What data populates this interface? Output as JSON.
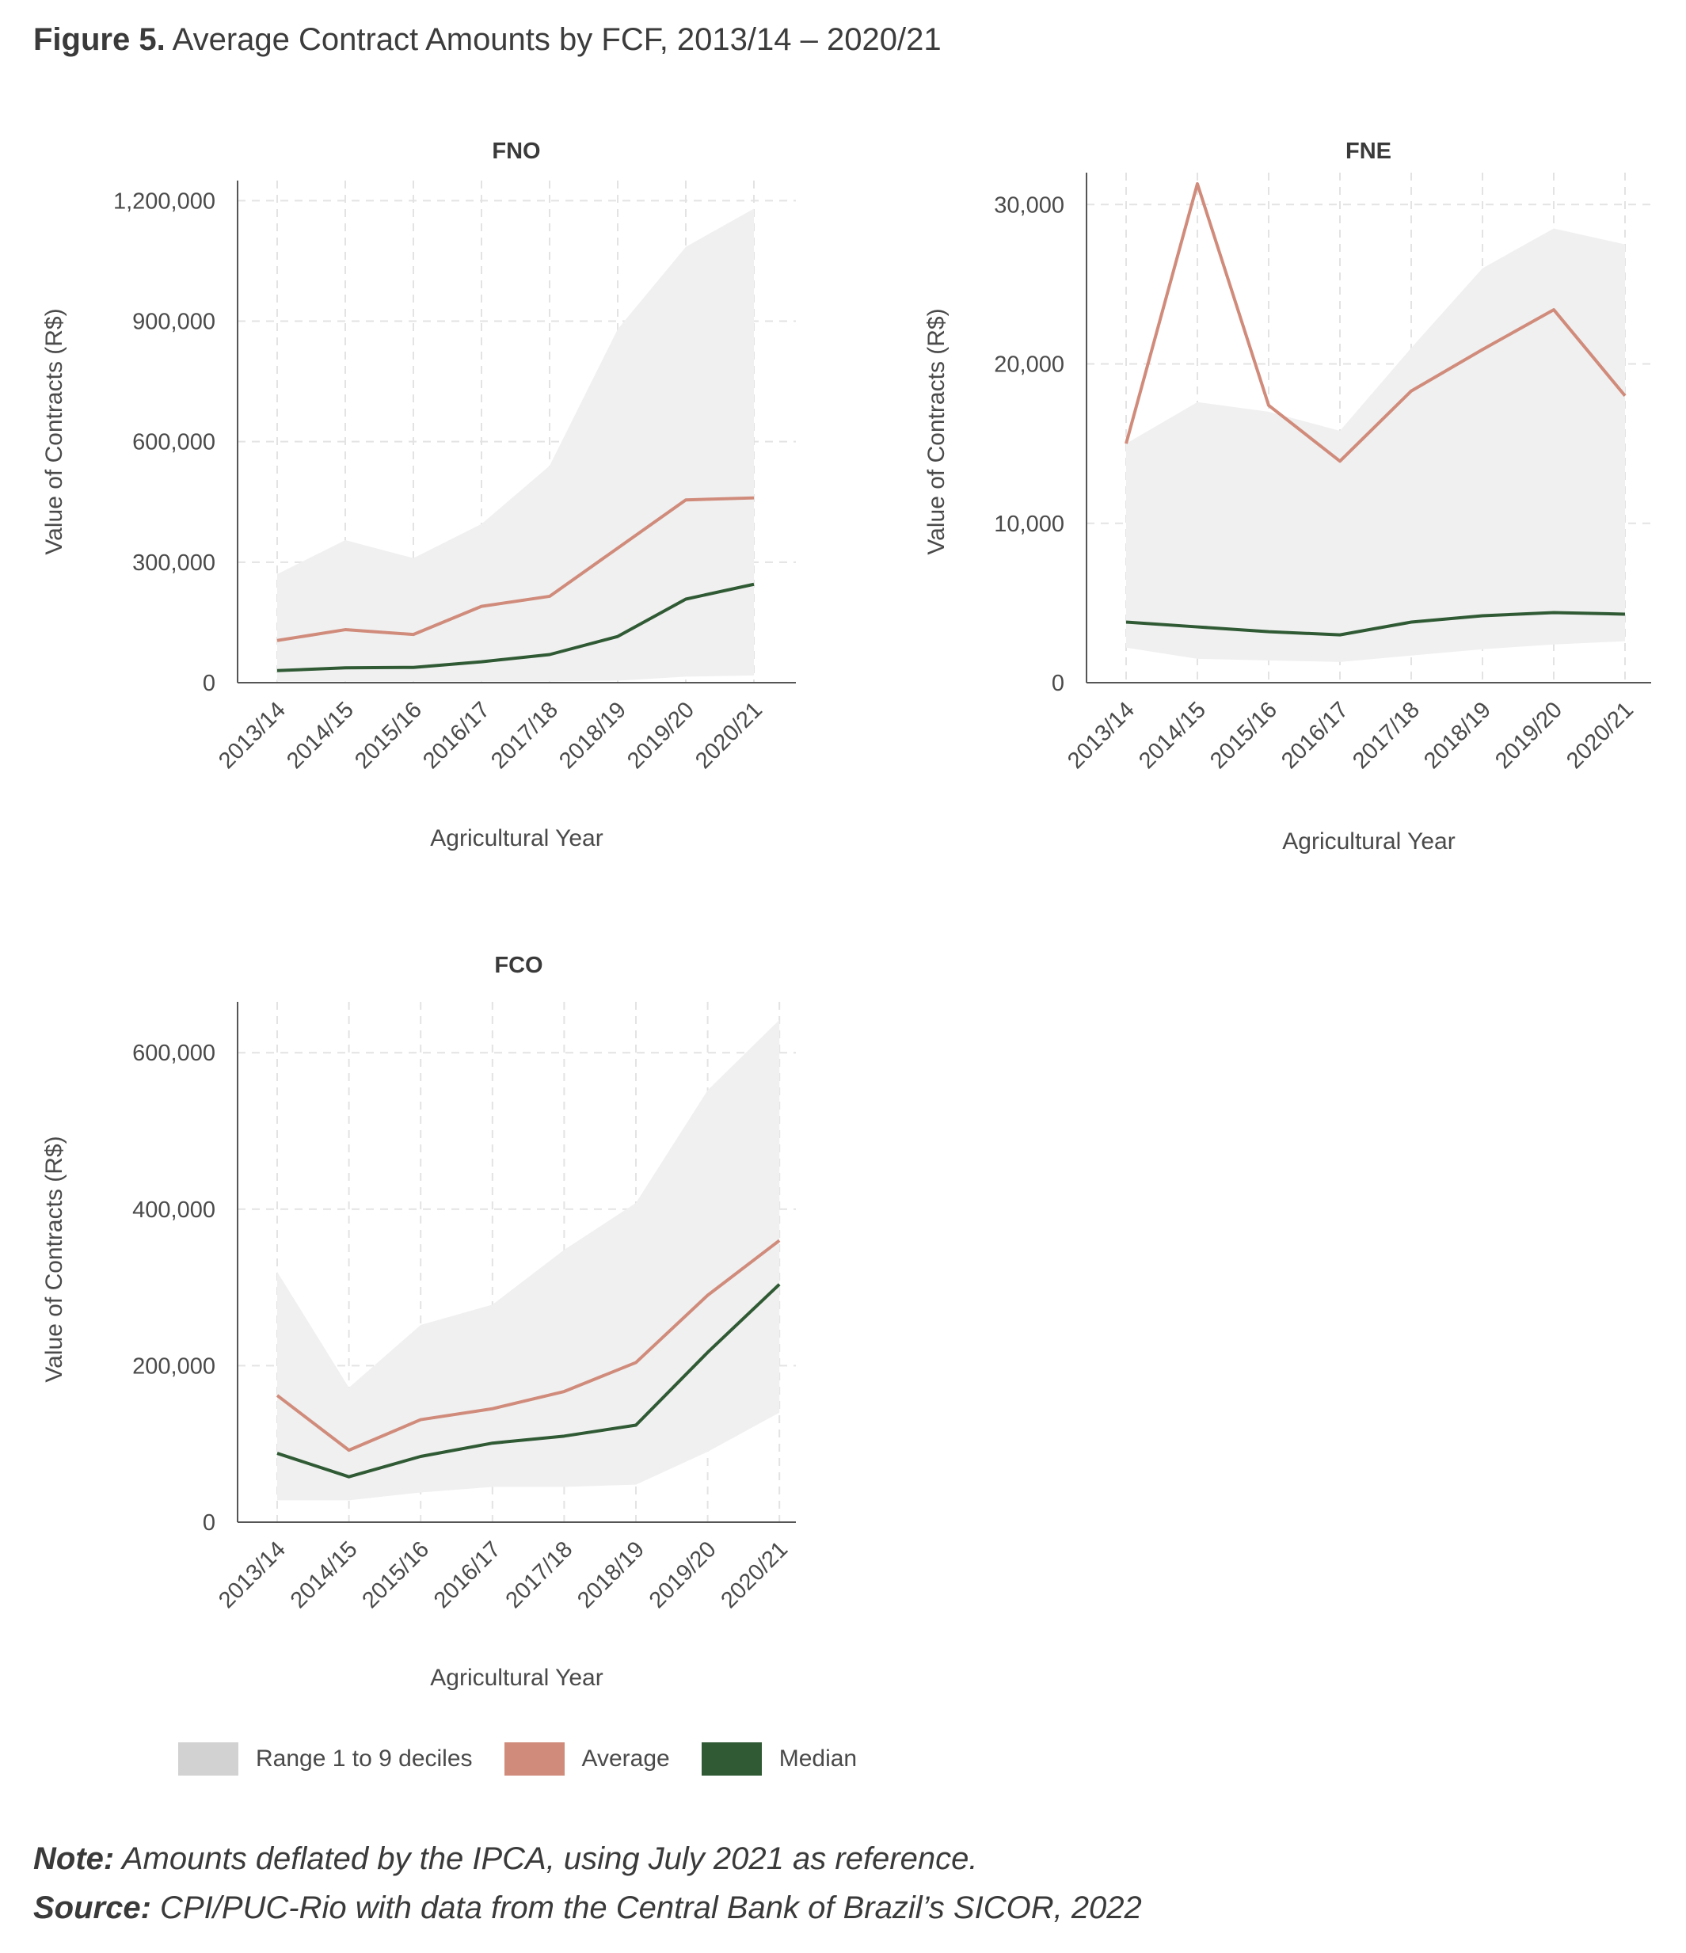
{
  "figure": {
    "label": "Figure 5.",
    "title": "Average Contract Amounts by FCF, 2013/14 – 2020/21"
  },
  "legend": {
    "range": "Range 1 to 9 deciles",
    "average": "Average",
    "median": "Median"
  },
  "colors": {
    "range": "#f0f0f0",
    "range_swatch": "#d2d2d2",
    "average": "#d08b7b",
    "median": "#2f5a34",
    "grid": "#e3e3e3",
    "axis": "#555555"
  },
  "note": {
    "label": "Note:",
    "text": " Amounts deflated by the IPCA, using July 2021 as reference."
  },
  "source": {
    "label": "Source:",
    "text": " CPI/PUC-Rio with data from the Central Bank of Brazil’s SICOR, 2022"
  },
  "chart_data": [
    {
      "type": "area",
      "title": "FNO",
      "xlabel": "Agricultural Year",
      "ylabel": "Value of Contracts (R$)",
      "categories": [
        "2013/14",
        "2014/15",
        "2015/16",
        "2016/17",
        "2017/18",
        "2018/19",
        "2019/20",
        "2020/21"
      ],
      "ylim": [
        0,
        1250000
      ],
      "yticks": [
        0,
        300000,
        600000,
        900000,
        1200000
      ],
      "ytick_labels": [
        "0",
        "300,000",
        "600,000",
        "900,000",
        "1,200,000"
      ],
      "grid": true,
      "series": [
        {
          "name": "Range 1 to 9 deciles",
          "kind": "band",
          "low": [
            3000,
            3000,
            3000,
            3000,
            3000,
            5000,
            15000,
            18000
          ],
          "high": [
            270000,
            355000,
            310000,
            395000,
            540000,
            880000,
            1085000,
            1180000
          ]
        },
        {
          "name": "Average",
          "kind": "line",
          "values": [
            105000,
            132000,
            120000,
            190000,
            215000,
            335000,
            455000,
            460000
          ]
        },
        {
          "name": "Median",
          "kind": "line",
          "values": [
            30000,
            37000,
            38000,
            52000,
            70000,
            115000,
            208000,
            245000
          ]
        }
      ]
    },
    {
      "type": "area",
      "title": "FNE",
      "xlabel": "Agricultural Year",
      "ylabel": "Value of Contracts (R$)",
      "categories": [
        "2013/14",
        "2014/15",
        "2015/16",
        "2016/17",
        "2017/18",
        "2018/19",
        "2019/20",
        "2020/21"
      ],
      "ylim": [
        0,
        32000
      ],
      "yticks": [
        0,
        10000,
        20000,
        30000
      ],
      "ytick_labels": [
        "0",
        "10,000",
        "20,000",
        "30,000"
      ],
      "grid": true,
      "series": [
        {
          "name": "Range 1 to 9 deciles",
          "kind": "band",
          "low": [
            2200,
            1500,
            1400,
            1300,
            1700,
            2100,
            2400,
            2600
          ],
          "high": [
            15000,
            17600,
            17000,
            15800,
            21000,
            26000,
            28500,
            27500
          ]
        },
        {
          "name": "Average",
          "kind": "line",
          "values": [
            15000,
            31300,
            17400,
            13900,
            18300,
            20900,
            23400,
            18000
          ]
        },
        {
          "name": "Median",
          "kind": "line",
          "values": [
            3800,
            3500,
            3200,
            3000,
            3800,
            4200,
            4400,
            4300
          ]
        }
      ]
    },
    {
      "type": "area",
      "title": "FCO",
      "xlabel": "Agricultural Year",
      "ylabel": "Value of Contracts (R$)",
      "categories": [
        "2013/14",
        "2014/15",
        "2015/16",
        "2016/17",
        "2017/18",
        "2018/19",
        "2019/20",
        "2020/21"
      ],
      "ylim": [
        0,
        665000
      ],
      "yticks": [
        0,
        200000,
        400000,
        600000
      ],
      "ytick_labels": [
        "0",
        "200,000",
        "400,000",
        "600,000"
      ],
      "grid": true,
      "series": [
        {
          "name": "Range 1 to 9 deciles",
          "kind": "band",
          "low": [
            28000,
            28000,
            38000,
            45000,
            45000,
            48000,
            90000,
            140000
          ],
          "high": [
            320000,
            172000,
            252000,
            278000,
            348000,
            408000,
            552000,
            642000
          ]
        },
        {
          "name": "Average",
          "kind": "line",
          "values": [
            162000,
            92000,
            131000,
            145000,
            167000,
            204000,
            290000,
            360000
          ]
        },
        {
          "name": "Median",
          "kind": "line",
          "values": [
            88000,
            58000,
            84000,
            101000,
            110000,
            124000,
            217000,
            304000
          ]
        }
      ]
    }
  ]
}
